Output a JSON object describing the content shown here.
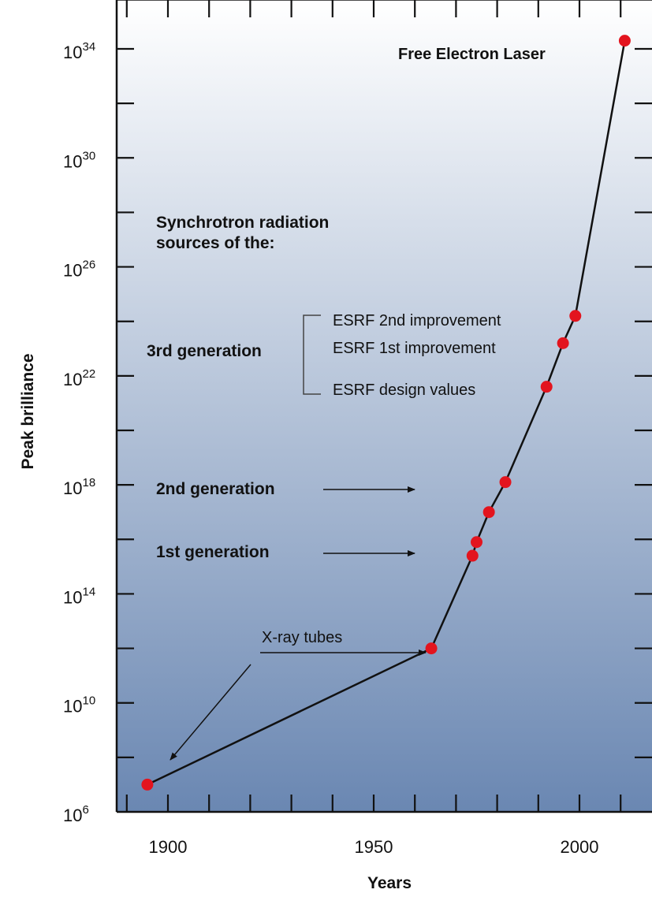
{
  "chart_data": {
    "type": "line",
    "title": "",
    "xlabel": "Years",
    "ylabel": "Peak brilliance",
    "xlim": [
      1880,
      2018
    ],
    "x_ticks": [
      1900,
      1950,
      2000
    ],
    "x_tick_labels": [
      "1900",
      "1950",
      "2000"
    ],
    "ylim_log10": [
      6,
      35
    ],
    "y_scale": "log",
    "y_ticks": [
      {
        "base": "10",
        "exp": "6",
        "log10": 6
      },
      {
        "base": "10",
        "exp": "10",
        "log10": 10
      },
      {
        "base": "10",
        "exp": "14",
        "log10": 14
      },
      {
        "base": "10",
        "exp": "18",
        "log10": 18
      },
      {
        "base": "10",
        "exp": "22",
        "log10": 22
      },
      {
        "base": "10",
        "exp": "26",
        "log10": 26
      },
      {
        "base": "10",
        "exp": "30",
        "log10": 30
      },
      {
        "base": "10",
        "exp": "34",
        "log10": 34
      }
    ],
    "series": [
      {
        "points": [
          {
            "x": 1895,
            "log10_y": 7.0
          },
          {
            "x": 1964,
            "log10_y": 12.0
          },
          {
            "x": 1974,
            "log10_y": 15.4
          },
          {
            "x": 1975,
            "log10_y": 15.9
          },
          {
            "x": 1978,
            "log10_y": 17.0
          },
          {
            "x": 1982,
            "log10_y": 18.1
          },
          {
            "x": 1992,
            "log10_y": 21.6
          },
          {
            "x": 1996,
            "log10_y": 23.2
          },
          {
            "x": 1999,
            "log10_y": 24.2
          },
          {
            "x": 2011,
            "log10_y": 34.3
          }
        ]
      }
    ],
    "annotations": {
      "fel": "Free Electron Laser",
      "synchrotron_line1": "Synchrotron radiation",
      "synchrotron_line2": "sources of the:",
      "third_gen": "3rd generation",
      "esrf_2nd": "ESRF 2nd improvement",
      "esrf_1st": "ESRF 1st improvement",
      "esrf_design": "ESRF design values",
      "second_gen": "2nd generation",
      "first_gen": "1st generation",
      "xray_tubes": "X-ray tubes"
    },
    "grid": false,
    "colors": {
      "marker": "#e3141e",
      "line": "#111111",
      "bg_top": "#ffffff",
      "bg_bottom": "#6a87b2"
    }
  }
}
